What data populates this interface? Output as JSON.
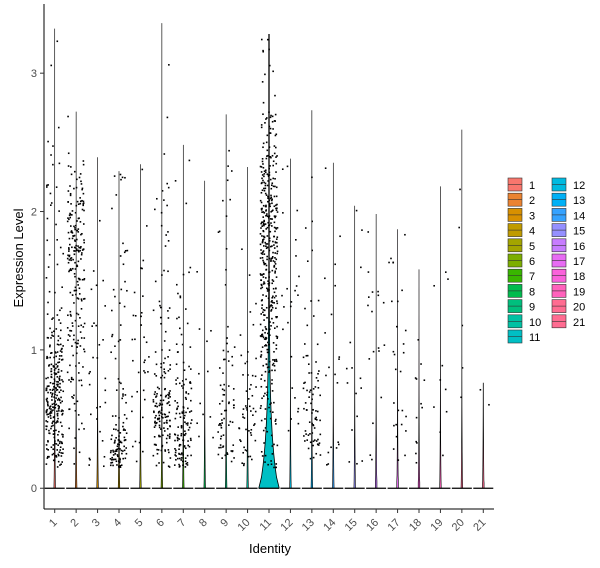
{
  "chart_data": {
    "type": "violin",
    "title": "",
    "xlabel": "Identity",
    "ylabel": "Expression Level",
    "ylim": [
      -0.15,
      3.5
    ],
    "yticks": [
      0,
      1,
      2,
      3
    ],
    "grid": false,
    "legend_position": "right",
    "categories": [
      "1",
      "2",
      "3",
      "4",
      "5",
      "6",
      "7",
      "8",
      "9",
      "10",
      "11",
      "12",
      "13",
      "14",
      "15",
      "16",
      "17",
      "18",
      "19",
      "20",
      "21"
    ],
    "series": [
      {
        "name": "1",
        "color": "#F8766D",
        "max": 3.32,
        "clusters": [
          {
            "center": 0.65,
            "spread": 0.3,
            "n": 260
          },
          {
            "center": 1.7,
            "spread": 0.6,
            "n": 35
          }
        ],
        "violin_width": 0.02
      },
      {
        "name": "2",
        "color": "#EA8331",
        "max": 2.72,
        "clusters": [
          {
            "center": 1.8,
            "spread": 0.3,
            "n": 130
          },
          {
            "center": 1.1,
            "spread": 0.6,
            "n": 90
          }
        ],
        "violin_width": 0.02
      },
      {
        "name": "3",
        "color": "#D89000",
        "max": 2.39,
        "clusters": [
          {
            "center": 0.8,
            "spread": 0.6,
            "n": 30
          }
        ],
        "violin_width": 0.02
      },
      {
        "name": "4",
        "color": "#C09B00",
        "max": 2.29,
        "clusters": [
          {
            "center": 0.3,
            "spread": 0.15,
            "n": 70
          },
          {
            "center": 1.2,
            "spread": 0.7,
            "n": 50
          }
        ],
        "violin_width": 0.02
      },
      {
        "name": "5",
        "color": "#A3A500",
        "max": 2.34,
        "clusters": [
          {
            "center": 0.9,
            "spread": 0.6,
            "n": 35
          }
        ],
        "violin_width": 0.02
      },
      {
        "name": "6",
        "color": "#7CAE00",
        "max": 3.36,
        "clusters": [
          {
            "center": 0.5,
            "spread": 0.2,
            "n": 120
          },
          {
            "center": 1.4,
            "spread": 0.6,
            "n": 45
          }
        ],
        "violin_width": 0.02
      },
      {
        "name": "7",
        "color": "#39B600",
        "max": 2.48,
        "clusters": [
          {
            "center": 0.45,
            "spread": 0.25,
            "n": 110
          },
          {
            "center": 1.2,
            "spread": 0.5,
            "n": 25
          }
        ],
        "violin_width": 0.02
      },
      {
        "name": "8",
        "color": "#00BB4E",
        "max": 2.22,
        "clusters": [
          {
            "center": 0.6,
            "spread": 0.5,
            "n": 12
          }
        ],
        "violin_width": 0.02
      },
      {
        "name": "9",
        "color": "#00BF7D",
        "max": 2.7,
        "clusters": [
          {
            "center": 0.5,
            "spread": 0.3,
            "n": 60
          },
          {
            "center": 1.5,
            "spread": 0.6,
            "n": 15
          }
        ],
        "violin_width": 0.02
      },
      {
        "name": "10",
        "color": "#00C1A3",
        "max": 2.32,
        "clusters": [
          {
            "center": 0.5,
            "spread": 0.3,
            "n": 45
          },
          {
            "center": 1.3,
            "spread": 0.5,
            "n": 10
          }
        ],
        "violin_width": 0.02
      },
      {
        "name": "11",
        "color": "#00BFC4",
        "max": 3.28,
        "clusters": [
          {
            "center": 1.8,
            "spread": 0.55,
            "n": 380
          },
          {
            "center": 0.7,
            "spread": 0.4,
            "n": 60
          }
        ],
        "violin_width": 0.9
      },
      {
        "name": "12",
        "color": "#00BAE0",
        "max": 2.38,
        "clusters": [
          {
            "center": 1.2,
            "spread": 0.7,
            "n": 25
          }
        ],
        "violin_width": 0.02
      },
      {
        "name": "13",
        "color": "#00B0F6",
        "max": 2.73,
        "clusters": [
          {
            "center": 0.5,
            "spread": 0.2,
            "n": 55
          },
          {
            "center": 1.1,
            "spread": 0.5,
            "n": 25
          }
        ],
        "violin_width": 0.02
      },
      {
        "name": "14",
        "color": "#35A2FF",
        "max": 2.35,
        "clusters": [
          {
            "center": 1.0,
            "spread": 0.6,
            "n": 20
          }
        ],
        "violin_width": 0.02
      },
      {
        "name": "15",
        "color": "#9590FF",
        "max": 2.04,
        "clusters": [
          {
            "center": 1.0,
            "spread": 0.6,
            "n": 15
          }
        ],
        "violin_width": 0.02
      },
      {
        "name": "16",
        "color": "#C77CFF",
        "max": 1.98,
        "clusters": [
          {
            "center": 0.9,
            "spread": 0.6,
            "n": 18
          }
        ],
        "violin_width": 0.02
      },
      {
        "name": "17",
        "color": "#E76BF3",
        "max": 1.87,
        "clusters": [
          {
            "center": 0.7,
            "spread": 0.5,
            "n": 28
          }
        ],
        "violin_width": 0.02
      },
      {
        "name": "18",
        "color": "#FA62DB",
        "max": 1.58,
        "clusters": [
          {
            "center": 0.5,
            "spread": 0.4,
            "n": 12
          }
        ],
        "violin_width": 0.02
      },
      {
        "name": "19",
        "color": "#FF62BC",
        "max": 2.18,
        "clusters": [
          {
            "center": 0.7,
            "spread": 0.5,
            "n": 10
          }
        ],
        "violin_width": 0.02
      },
      {
        "name": "20",
        "color": "#FF6C91",
        "max": 2.59,
        "clusters": [
          {
            "center": 1.6,
            "spread": 0.3,
            "n": 5
          }
        ],
        "violin_width": 0.02
      },
      {
        "name": "21",
        "color": "#FF6C91",
        "max": 0.76,
        "clusters": [
          {
            "center": 0.4,
            "spread": 0.2,
            "n": 2
          }
        ],
        "violin_width": 0.02
      }
    ]
  }
}
